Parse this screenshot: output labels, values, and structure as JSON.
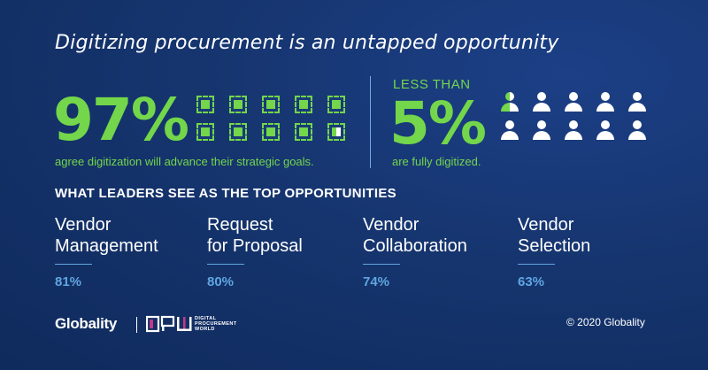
{
  "headline": "Digitizing procurement is an untapped opportunity",
  "stat_left": {
    "value": "97%",
    "description": "agree digitization will advance their strategic goals."
  },
  "stat_right": {
    "prefix": "LESS THAN",
    "value": "5%",
    "description": "are fully digitized."
  },
  "section_title": "WHAT LEADERS SEE AS THE TOP OPPORTUNITIES",
  "opportunities": [
    {
      "name": "Vendor\nManagement",
      "value": "81%"
    },
    {
      "name": "Request\nfor Proposal",
      "value": "80%"
    },
    {
      "name": "Vendor\nCollaboration",
      "value": "74%"
    },
    {
      "name": "Vendor\nSelection",
      "value": "63%"
    }
  ],
  "footer": {
    "brand": "Globality",
    "partner_mark": "DPW",
    "partner_name": "DIGITAL PROCUREMENT WORLD",
    "copyright": "© 2020 Globality"
  },
  "colors": {
    "accent_green": "#73d64b",
    "accent_blue": "#5fa6e0",
    "background": "#16356f"
  },
  "icons": {
    "chips_total": 10,
    "chips_filled": 9.7,
    "people_total": 10,
    "people_highlighted": 0.5
  }
}
